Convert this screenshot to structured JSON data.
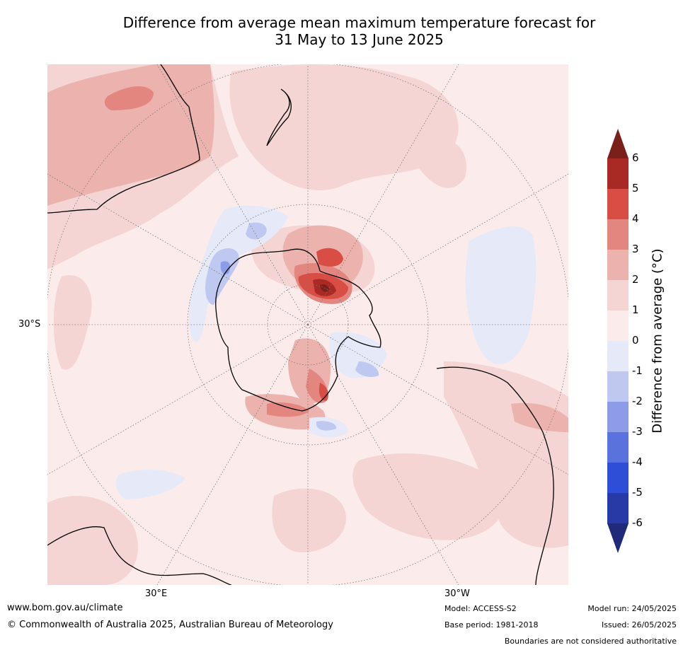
{
  "title_line1": "Difference from average mean maximum temperature forecast for",
  "title_line2": "31 May to 13 June 2025",
  "map": {
    "projection": "south polar stereographic",
    "lat_label": "30°S",
    "lon_label_left": "30°E",
    "lon_label_right": "30°W",
    "colors": {
      "ocean_base": "#fbeceb",
      "warm_1_2": "#f4d5d3",
      "warm_2_3": "#ecb2ad",
      "warm_3_4": "#e3867f",
      "warm_4_5": "#d84e44",
      "warm_5_6": "#a92a25",
      "warm_6plus": "#7a1f1a",
      "cool_0_1": "#e6eaf8",
      "cool_1_2": "#bfc8f0",
      "cool_2_3": "#8c9ce6"
    }
  },
  "colorbar": {
    "title": "Difference from average (°C)",
    "ticks": [
      "6",
      "5",
      "4",
      "3",
      "2",
      "1",
      "0",
      "-1",
      "-2",
      "-3",
      "-4",
      "-5",
      "-6"
    ],
    "bin_colors": [
      "#a92a25",
      "#d84e44",
      "#e3867f",
      "#ecb2ad",
      "#f4d5d3",
      "#fbeceb",
      "#e6eaf8",
      "#bfc8f0",
      "#8c9ce6",
      "#5a72de",
      "#2f4ed8",
      "#283aa8"
    ],
    "top_arrow_color": "#7a1f1a",
    "bottom_arrow_color": "#1f2a7a"
  },
  "footer": {
    "website": "www.bom.gov.au/climate",
    "copyright": "© Commonwealth of Australia 2025, Australian Bureau of Meteorology",
    "model": "Model: ACCESS-S2",
    "base_period": "Base period: 1981-2018",
    "model_run": "Model run: 24/05/2025",
    "issued": "Issued: 26/05/2025",
    "disclaimer": "Boundaries are not considered authoritative"
  }
}
